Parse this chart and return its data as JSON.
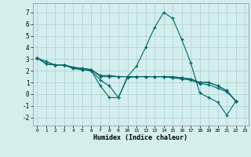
{
  "xlabel": "Humidex (Indice chaleur)",
  "background_color": "#d4eeee",
  "grid_color": "#b8d8d8",
  "line_color": "#006666",
  "marker": "+",
  "series": [
    [
      3.1,
      2.8,
      2.5,
      2.5,
      2.2,
      2.1,
      2.0,
      0.7,
      -0.3,
      -0.3,
      1.5,
      2.4,
      4.0,
      5.7,
      7.0,
      6.5,
      4.7,
      2.7,
      0.1,
      -0.3,
      -0.7,
      -1.8,
      -0.6
    ],
    [
      3.1,
      2.6,
      2.5,
      2.5,
      2.2,
      2.1,
      2.0,
      1.2,
      0.7,
      -0.3,
      1.4,
      1.5,
      1.5,
      1.5,
      1.5,
      1.4,
      1.3,
      1.2,
      0.9,
      0.8,
      0.5,
      0.2,
      -0.6
    ],
    [
      3.1,
      2.6,
      2.5,
      2.5,
      2.3,
      2.2,
      2.1,
      1.5,
      1.5,
      1.5,
      1.5,
      1.5,
      1.5,
      1.5,
      1.5,
      1.4,
      1.4,
      1.3,
      1.0,
      1.0,
      0.7,
      0.3,
      -0.6
    ],
    [
      3.1,
      2.6,
      2.5,
      2.5,
      2.3,
      2.2,
      2.1,
      1.6,
      1.6,
      1.5,
      1.5,
      1.5,
      1.5,
      1.5,
      1.5,
      1.5,
      1.4,
      1.3,
      1.0,
      1.0,
      0.7,
      0.3,
      -0.6
    ]
  ],
  "xlim": [
    -0.5,
    23.4
  ],
  "ylim": [
    -2.7,
    7.8
  ],
  "yticks": [
    -2,
    -1,
    0,
    1,
    2,
    3,
    4,
    5,
    6,
    7
  ],
  "xticks": [
    0,
    1,
    2,
    3,
    4,
    5,
    6,
    7,
    8,
    9,
    10,
    11,
    12,
    13,
    14,
    15,
    16,
    17,
    18,
    19,
    20,
    21,
    22,
    23
  ]
}
